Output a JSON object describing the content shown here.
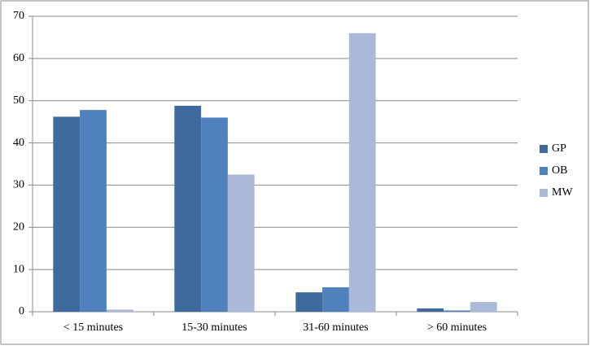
{
  "chart_data": {
    "type": "bar",
    "categories": [
      "< 15 minutes",
      "15-30 minutes",
      "31-60 minutes",
      "> 60 minutes"
    ],
    "series": [
      {
        "name": "GP",
        "color": "#3f6a9e",
        "values": [
          46.2,
          48.8,
          4.6,
          0.8
        ]
      },
      {
        "name": "OB",
        "color": "#4f81bd",
        "values": [
          47.8,
          46.0,
          5.8,
          0.3
        ]
      },
      {
        "name": "MW",
        "color": "#aab9d8",
        "values": [
          0.5,
          32.5,
          66.0,
          2.3
        ]
      }
    ],
    "ylim": [
      0,
      70
    ],
    "yticks": [
      0,
      10,
      20,
      30,
      40,
      50,
      60,
      70
    ],
    "grid": true,
    "legend": "right"
  }
}
